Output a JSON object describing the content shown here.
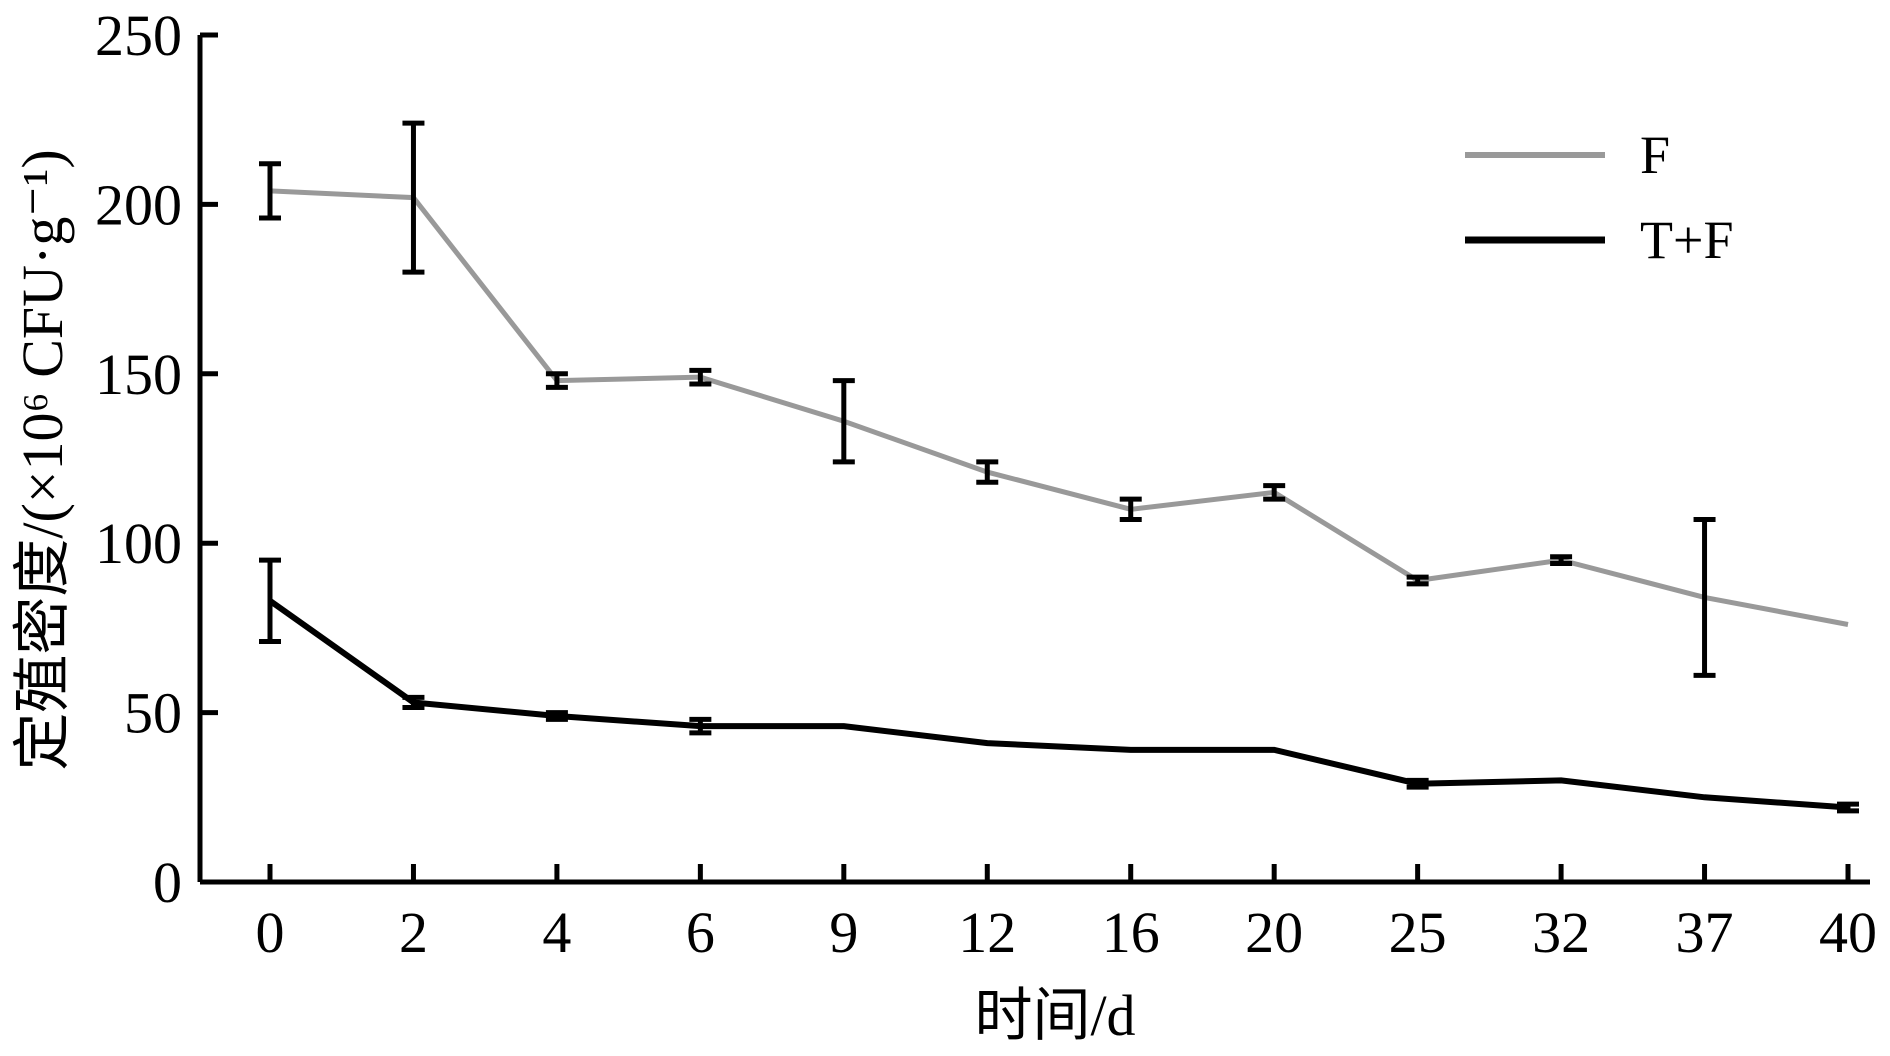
{
  "chart_data": {
    "type": "line",
    "title": "",
    "xlabel": "时间/d",
    "ylabel": "定殖密度/(×10⁶ CFU·g⁻¹)",
    "x": [
      "0",
      "2",
      "4",
      "6",
      "9",
      "12",
      "16",
      "20",
      "25",
      "32",
      "37",
      "40"
    ],
    "ylim": [
      0,
      250
    ],
    "yticks": [
      0,
      50,
      100,
      150,
      200,
      250
    ],
    "grid": false,
    "legend_position": "top-right",
    "series": [
      {
        "name": "F",
        "color": "#999999",
        "values": [
          204,
          202,
          148,
          149,
          136,
          121,
          110,
          115,
          89,
          95,
          84,
          76
        ],
        "error": [
          8,
          22,
          2,
          2,
          12,
          3,
          3,
          2,
          1,
          1,
          23,
          0
        ]
      },
      {
        "name": "T+F",
        "color": "#000000",
        "values": [
          83,
          53,
          49,
          46,
          46,
          41,
          39,
          39,
          29,
          30,
          25,
          22
        ],
        "error": [
          12,
          1.5,
          1,
          2,
          0,
          0,
          0,
          0,
          1,
          0,
          0,
          1
        ]
      }
    ]
  }
}
